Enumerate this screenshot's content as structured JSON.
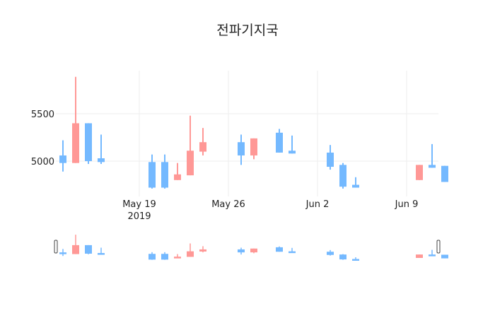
{
  "title": "전파기지국",
  "colors": {
    "increasing": "#ff9896",
    "decreasing": "#74b9ff",
    "grid": "#eeeeee",
    "text": "#222222"
  },
  "chart_data": {
    "type": "candlestick",
    "title": "전파기지국",
    "xlabel": "",
    "ylabel": "",
    "y_ticks": [
      5000,
      5500
    ],
    "x_ticks": [
      "May 19\n2019",
      "May 26",
      "Jun 2",
      "Jun 9"
    ],
    "x_range": [
      "2019-05-12",
      "2019-06-12"
    ],
    "ylim": [
      4700,
      5960
    ],
    "grid": true,
    "rangeslider": true,
    "increasing_color": "#ff9896",
    "decreasing_color": "#74b9ff",
    "x": [
      "2019-05-13",
      "2019-05-14",
      "2019-05-15",
      "2019-05-16",
      "2019-05-20",
      "2019-05-21",
      "2019-05-22",
      "2019-05-23",
      "2019-05-24",
      "2019-05-27",
      "2019-05-28",
      "2019-05-30",
      "2019-05-31",
      "2019-06-03",
      "2019-06-04",
      "2019-06-05",
      "2019-06-10",
      "2019-06-11",
      "2019-06-12"
    ],
    "open": [
      5060,
      4980,
      5400,
      5030,
      4990,
      4990,
      4800,
      4850,
      5100,
      5200,
      5060,
      5300,
      5110,
      5090,
      4960,
      4750,
      4800,
      4960,
      4950
    ],
    "high": [
      5220,
      5890,
      5400,
      5280,
      5070,
      5070,
      4980,
      5480,
      5350,
      5280,
      5240,
      5340,
      5270,
      5170,
      4980,
      4830,
      4960,
      5180,
      4950
    ],
    "low": [
      4890,
      4980,
      4970,
      4970,
      4710,
      4710,
      4800,
      4850,
      5060,
      4960,
      5020,
      5090,
      5080,
      4910,
      4710,
      4720,
      4800,
      4930,
      4780
    ],
    "close": [
      4980,
      5400,
      5000,
      4990,
      4720,
      4720,
      4860,
      5110,
      5200,
      5060,
      5240,
      5090,
      5080,
      4940,
      4730,
      4720,
      4960,
      4930,
      4780
    ]
  }
}
